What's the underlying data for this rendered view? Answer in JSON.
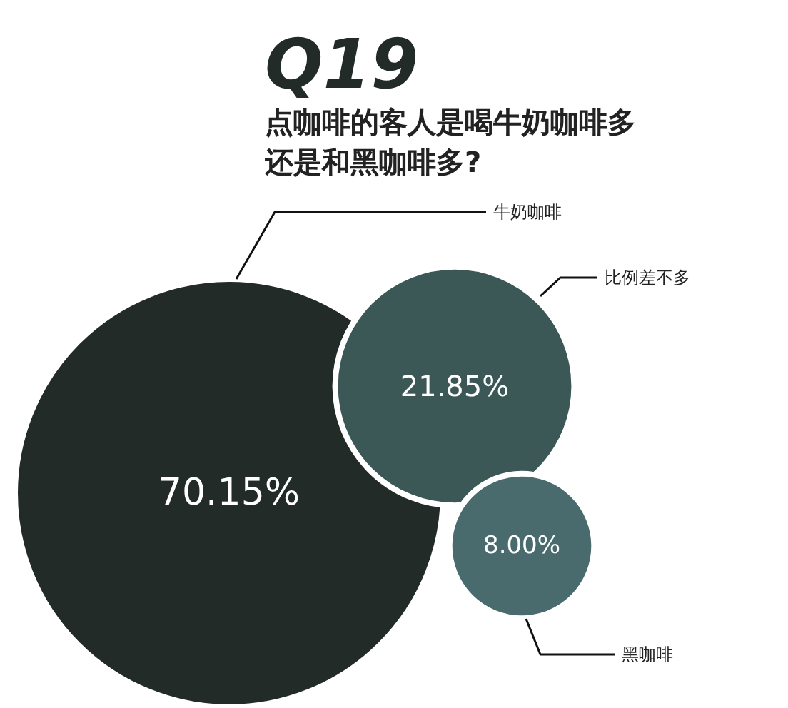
{
  "chart_data": {
    "type": "other",
    "title": "Q19",
    "subtitle": "点咖啡的客人是喝牛奶咖啡多还是和黑咖啡多?",
    "categories": [
      "牛奶咖啡",
      "比例差不多",
      "黑咖啡"
    ],
    "values": [
      70.15,
      21.85,
      8.0
    ],
    "value_labels": [
      "70.15%",
      "21.85%",
      "8.00%"
    ],
    "colors": [
      "#222b27",
      "#3c5856",
      "#4a6b6e"
    ]
  }
}
